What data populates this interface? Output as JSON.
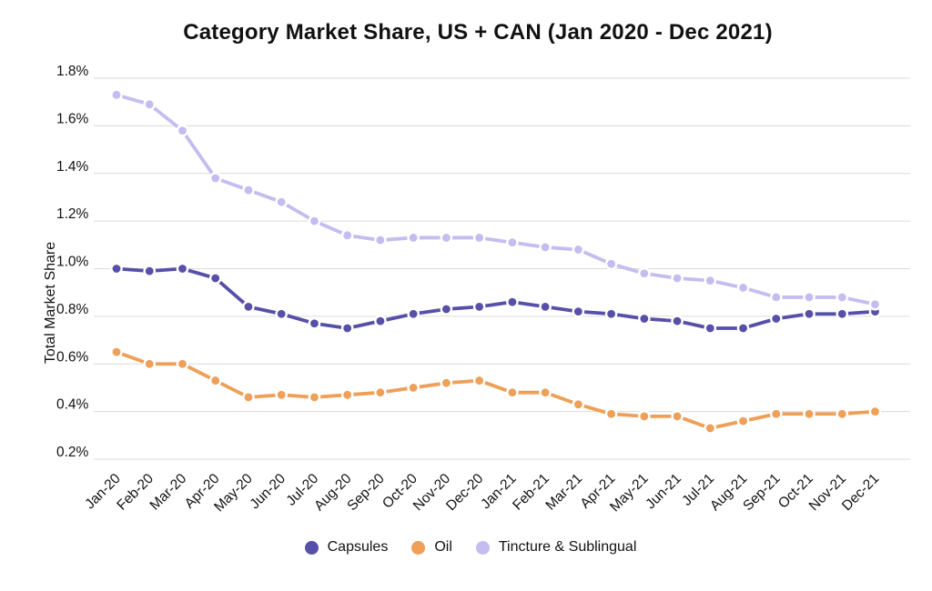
{
  "chart_data": {
    "type": "line",
    "title": "Category Market Share, US + CAN (Jan 2020 - Dec 2021)",
    "xlabel": "",
    "ylabel": "Total Market Share",
    "unit": "%",
    "ylim": [
      0.2,
      1.8
    ],
    "ytick_values": [
      1.8,
      1.6,
      1.4,
      1.2,
      1.0,
      0.8,
      0.6,
      0.4,
      0.2
    ],
    "ytick_labels": [
      "1.8%",
      "1.6%",
      "1.4%",
      "1.2%",
      "1.0%",
      "0.8%",
      "0.6%",
      "0.4%",
      "0.2%"
    ],
    "grid": true,
    "legend_position": "bottom",
    "categories": [
      "Jan-20",
      "Feb-20",
      "Mar-20",
      "Apr-20",
      "May-20",
      "Jun-20",
      "Jul-20",
      "Aug-20",
      "Sep-20",
      "Oct-20",
      "Nov-20",
      "Dec-20",
      "Jan-21",
      "Feb-21",
      "Mar-21",
      "Apr-21",
      "May-21",
      "Jun-21",
      "Jul-21",
      "Aug-21",
      "Sep-21",
      "Oct-21",
      "Nov-21",
      "Dec-21"
    ],
    "series": [
      {
        "name": "Capsules",
        "color": "#5650A8",
        "values": [
          1.0,
          0.99,
          1.0,
          0.96,
          0.84,
          0.81,
          0.77,
          0.75,
          0.78,
          0.81,
          0.83,
          0.84,
          0.86,
          0.84,
          0.82,
          0.81,
          0.79,
          0.78,
          0.75,
          0.75,
          0.79,
          0.81,
          0.81,
          0.82
        ]
      },
      {
        "name": "Oil",
        "color": "#EE9F58",
        "values": [
          0.65,
          0.6,
          0.6,
          0.53,
          0.46,
          0.47,
          0.46,
          0.47,
          0.48,
          0.5,
          0.52,
          0.53,
          0.48,
          0.48,
          0.43,
          0.39,
          0.38,
          0.38,
          0.33,
          0.36,
          0.39,
          0.39,
          0.39,
          0.4
        ]
      },
      {
        "name": "Tincture & Sublingual",
        "color": "#C4BDEF",
        "values": [
          1.73,
          1.69,
          1.58,
          1.38,
          1.33,
          1.28,
          1.2,
          1.14,
          1.12,
          1.13,
          1.13,
          1.13,
          1.11,
          1.09,
          1.08,
          1.02,
          0.98,
          0.96,
          0.95,
          0.92,
          0.88,
          0.88,
          0.88,
          0.85
        ]
      }
    ]
  },
  "colors": {
    "background": "#FFFFFF",
    "gridline": "#DBDBDB",
    "text": "#111111",
    "point_halo": "#FFFFFF"
  }
}
